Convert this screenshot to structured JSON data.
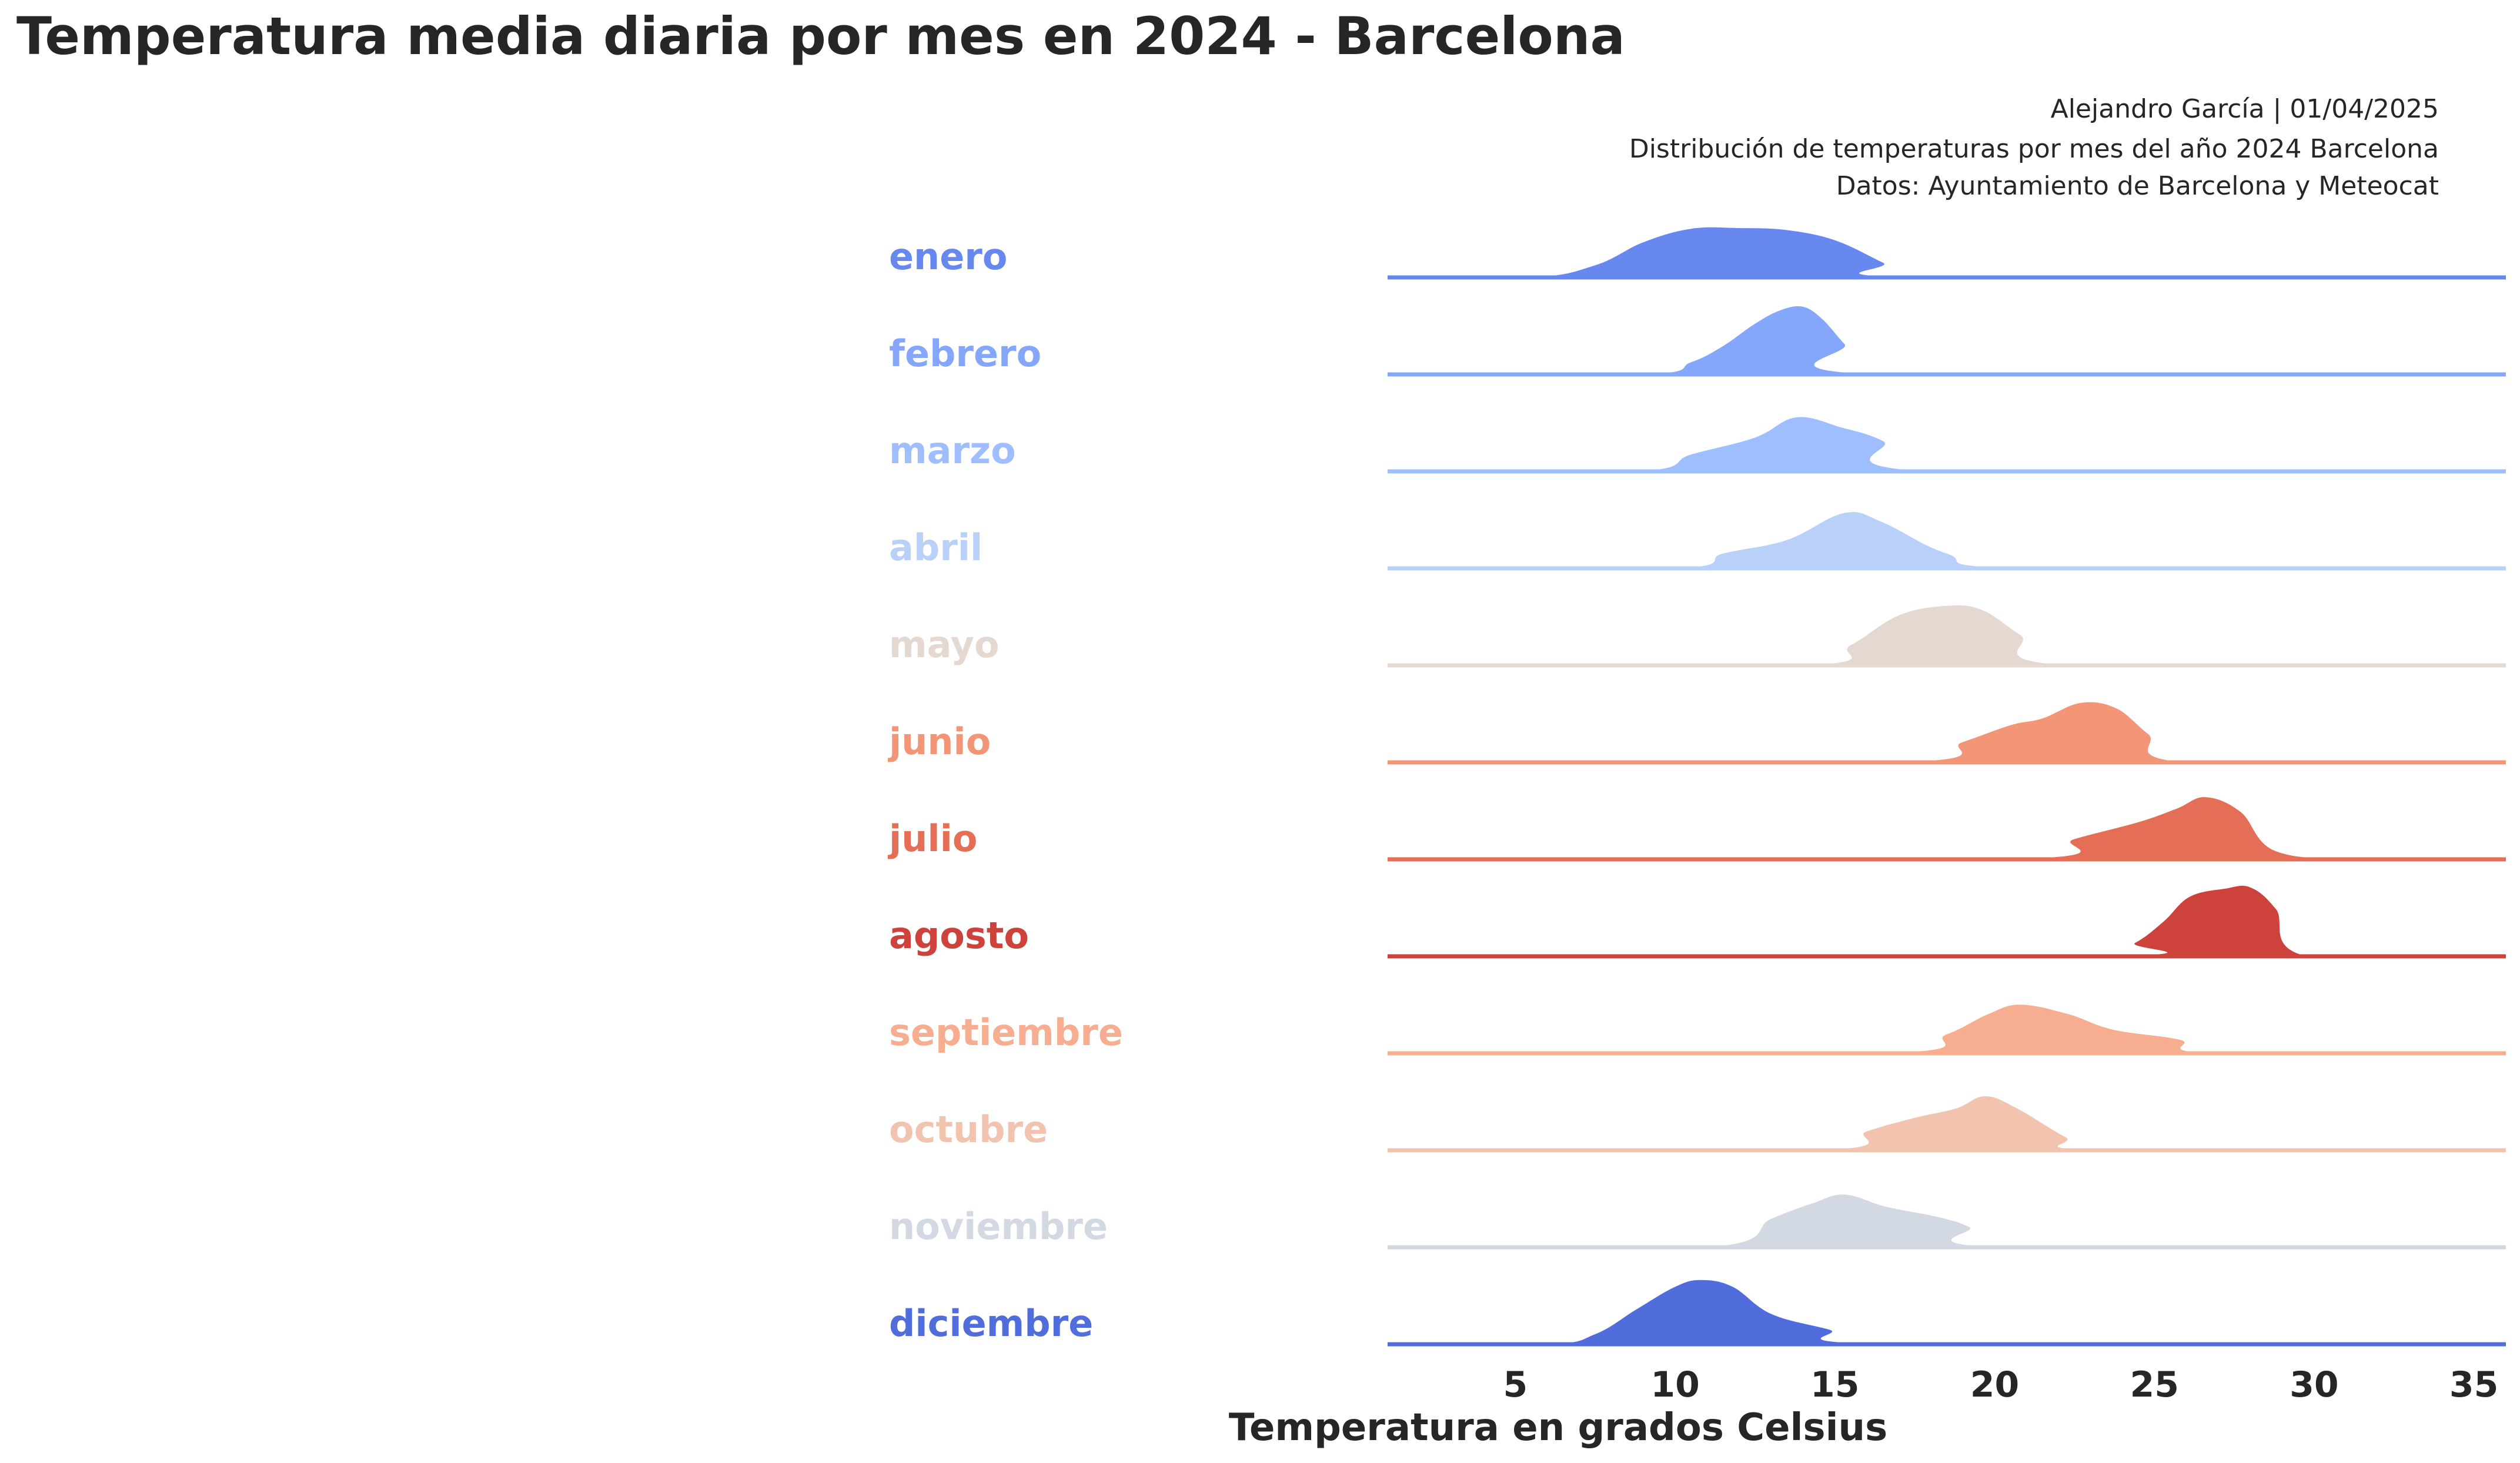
{
  "chart_data": {
    "type": "ridgeline",
    "title": "Temperatura media diaria por mes en 2024 - Barcelona",
    "subtitle_lines": [
      "Alejandro García | 01/04/2025",
      "Distribución de temperaturas por mes del año 2024 Barcelona",
      "Datos: Ayuntamiento de Barcelona y Meteocat"
    ],
    "xlabel": "Temperatura en grados Celsius",
    "xlim": [
      1,
      36
    ],
    "x_ticks": [
      5,
      10,
      15,
      20,
      25,
      30,
      35
    ],
    "grid": false,
    "series": [
      {
        "name": "enero",
        "color": "#6788ee",
        "x": [
          1,
          5.5,
          7.5,
          9,
          10.5,
          12,
          13.5,
          15,
          16.5,
          17.5,
          36
        ],
        "density": [
          0,
          0,
          0.18,
          0.52,
          0.72,
          0.73,
          0.7,
          0.55,
          0.22,
          0,
          0
        ]
      },
      {
        "name": "febrero",
        "color": "#84a7fc",
        "x": [
          1,
          9,
          10.5,
          11.5,
          12.5,
          13.3,
          14,
          14.6,
          15.3,
          16.2,
          36
        ],
        "density": [
          0,
          0,
          0.18,
          0.42,
          0.75,
          0.95,
          1.0,
          0.82,
          0.45,
          0,
          0
        ]
      },
      {
        "name": "marzo",
        "color": "#9ebeff",
        "x": [
          1,
          8.8,
          10.5,
          12.5,
          13.8,
          15.2,
          16.5,
          18,
          36
        ],
        "density": [
          0,
          0,
          0.25,
          0.5,
          0.8,
          0.65,
          0.45,
          0,
          0
        ]
      },
      {
        "name": "abril",
        "color": "#b9d0f9",
        "x": [
          1,
          10,
          11.5,
          13.5,
          15.3,
          16.5,
          18.5,
          21,
          36
        ],
        "density": [
          0,
          0,
          0.22,
          0.42,
          0.82,
          0.68,
          0.22,
          0,
          0
        ]
      },
      {
        "name": "mayo",
        "color": "#e5d8d1",
        "x": [
          1,
          14,
          15.5,
          17,
          18.5,
          19.6,
          20.8,
          22.3,
          36
        ],
        "density": [
          0,
          0,
          0.3,
          0.74,
          0.88,
          0.82,
          0.45,
          0,
          0
        ]
      },
      {
        "name": "junio",
        "color": "#f39577",
        "x": [
          1,
          17,
          19,
          20.5,
          21.5,
          22.7,
          23.8,
          24.8,
          26,
          36
        ],
        "density": [
          0,
          0,
          0.3,
          0.55,
          0.65,
          0.88,
          0.8,
          0.42,
          0,
          0
        ]
      },
      {
        "name": "julio",
        "color": "#e46e56",
        "x": [
          1,
          20.5,
          22.5,
          24.5,
          25.7,
          26.6,
          27.7,
          28.8,
          31.5,
          36
        ],
        "density": [
          0,
          0,
          0.3,
          0.55,
          0.75,
          0.92,
          0.7,
          0.12,
          0,
          0
        ]
      },
      {
        "name": "agosto",
        "color": "#cd423b",
        "x": [
          1,
          23.3,
          24.4,
          25.3,
          26.1,
          27.2,
          28,
          28.8,
          29.8,
          36
        ],
        "density": [
          0,
          0,
          0.2,
          0.52,
          0.88,
          1.0,
          1.02,
          0.7,
          0,
          0
        ]
      },
      {
        "name": "septiembre",
        "color": "#f7ad90",
        "x": [
          1,
          16.5,
          18.5,
          19.8,
          20.8,
          22.3,
          23.7,
          25.8,
          26.8,
          36
        ],
        "density": [
          0,
          0,
          0.28,
          0.58,
          0.72,
          0.58,
          0.35,
          0.2,
          0,
          0
        ]
      },
      {
        "name": "octubre",
        "color": "#f2c4b0",
        "x": [
          1,
          14.5,
          16,
          17.5,
          18.8,
          19.7,
          20.7,
          22.2,
          23.3,
          36
        ],
        "density": [
          0,
          0,
          0.28,
          0.48,
          0.62,
          0.8,
          0.62,
          0.2,
          0,
          0
        ]
      },
      {
        "name": "noviembre",
        "color": "#d2d9e3",
        "x": [
          1,
          11,
          13,
          14.3,
          15.3,
          16.6,
          18.2,
          19.2,
          20.2,
          36
        ],
        "density": [
          0,
          0,
          0.42,
          0.65,
          0.78,
          0.6,
          0.45,
          0.3,
          0,
          0
        ]
      },
      {
        "name": "diciembre",
        "color": "#516ddb",
        "x": [
          1,
          6,
          7.5,
          8.8,
          10,
          10.8,
          11.8,
          13,
          14.8,
          16.7,
          36
        ],
        "density": [
          0,
          0,
          0.15,
          0.52,
          0.85,
          0.95,
          0.85,
          0.45,
          0.22,
          0,
          0
        ]
      }
    ]
  }
}
